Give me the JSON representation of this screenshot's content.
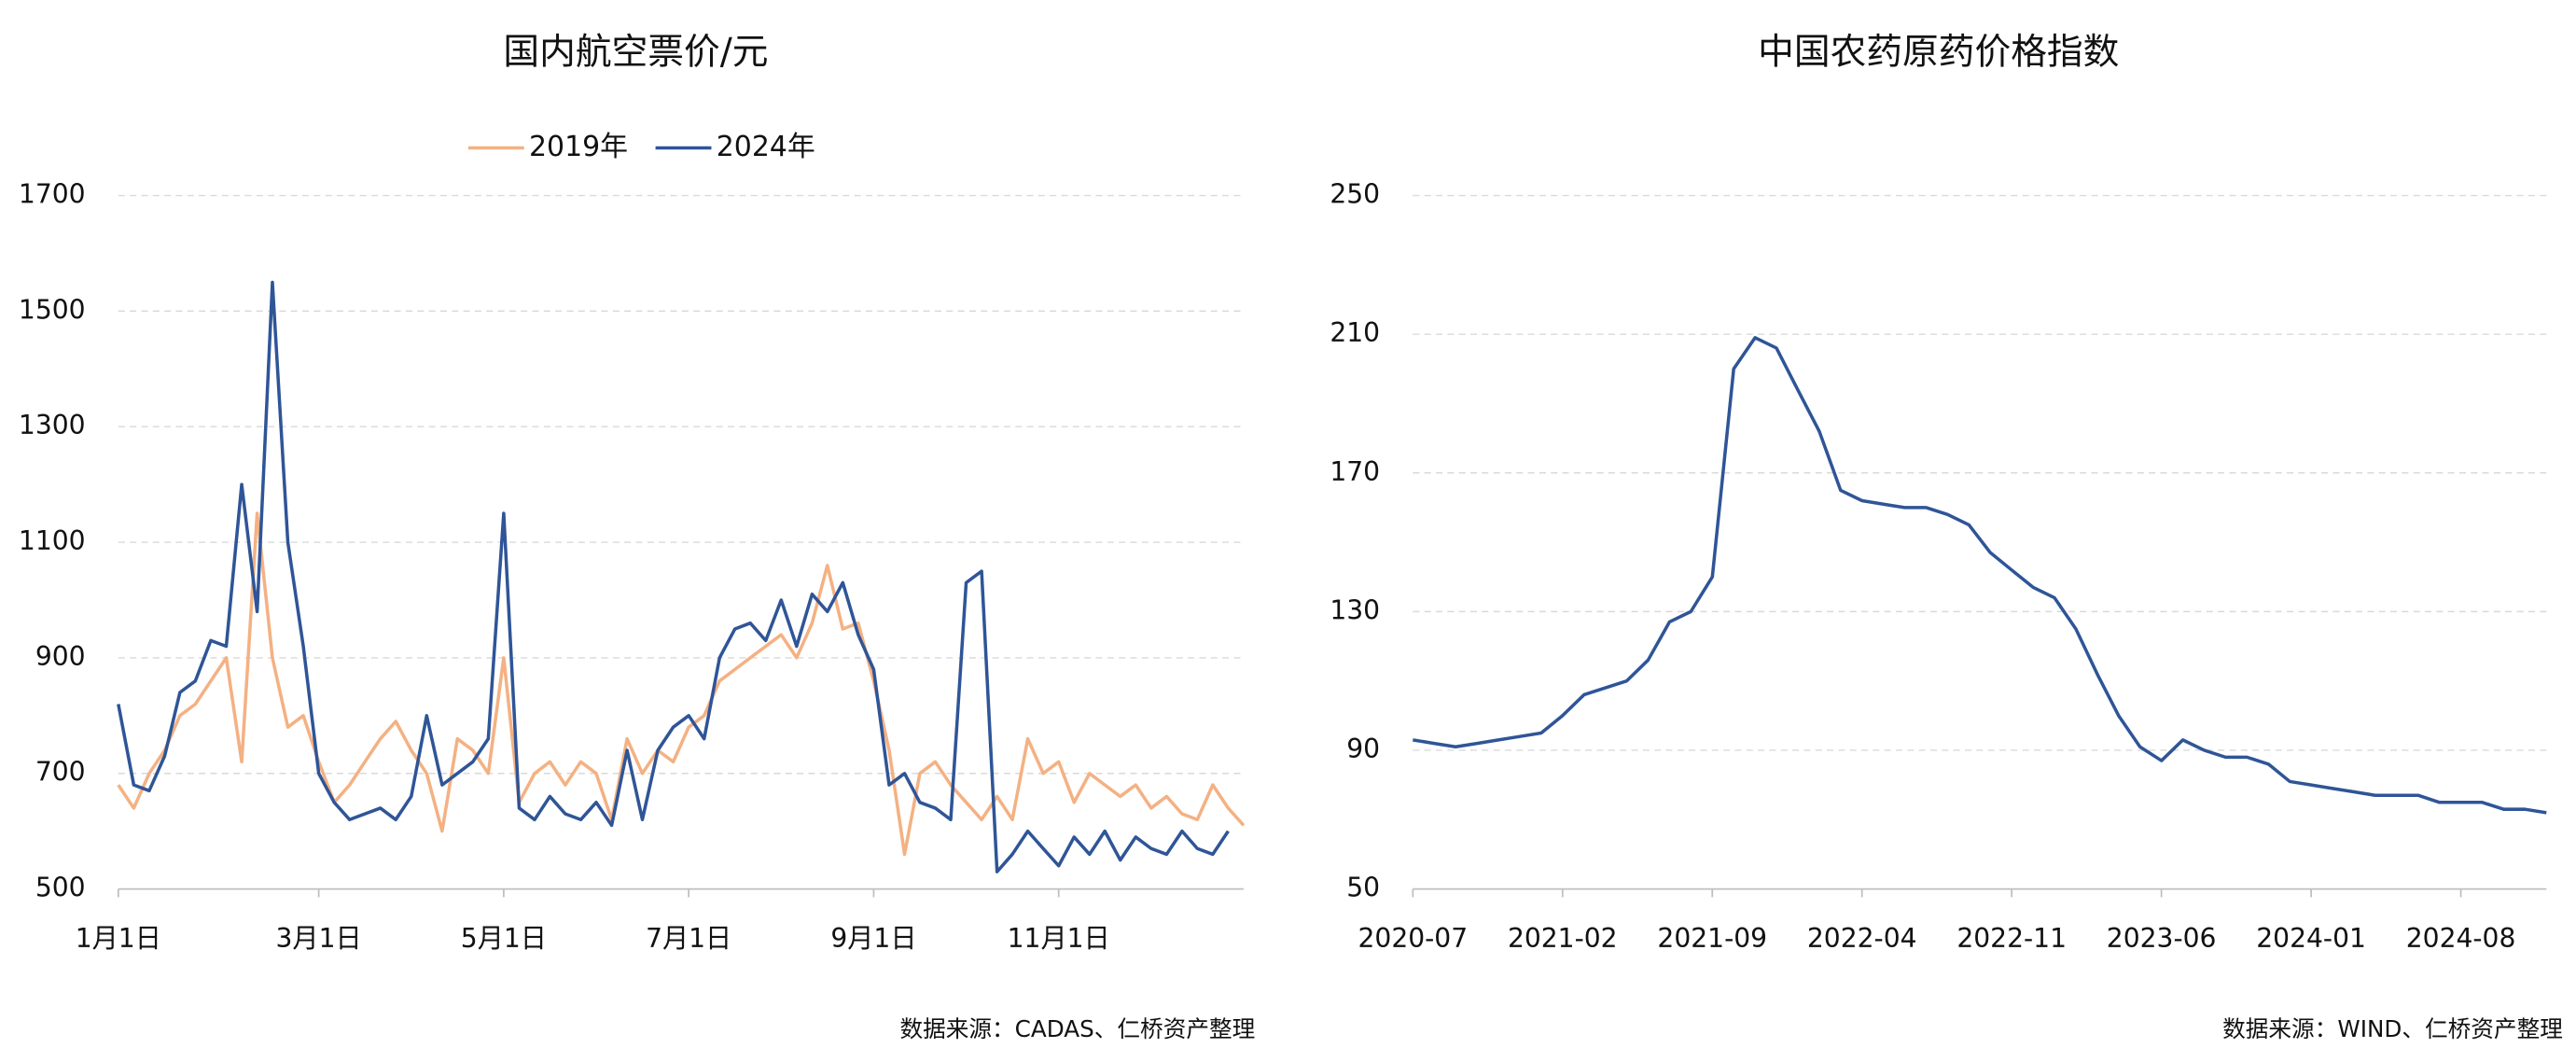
{
  "chart_data": [
    {
      "type": "line",
      "title": "国内航空票价/元",
      "source": "数据来源：CADAS、仁桥资产整理",
      "legend": "top",
      "x": [
        "1月1日",
        "1月6日",
        "1月11日",
        "1月16日",
        "1月21日",
        "1月26日",
        "1月31日",
        "2月1日",
        "2月6日",
        "2月11日",
        "2月16日",
        "2月21日",
        "2月26日",
        "3月1日",
        "3月6日",
        "3月11日",
        "3月16日",
        "3月21日",
        "3月26日",
        "4月1日",
        "4月6日",
        "4月11日",
        "4月16日",
        "4月21日",
        "4月26日",
        "5月1日",
        "5月6日",
        "5月11日",
        "5月16日",
        "5月21日",
        "5月26日",
        "6月1日",
        "6月6日",
        "6月11日",
        "6月16日",
        "6月21日",
        "6月26日",
        "7月1日",
        "7月6日",
        "7月11日",
        "7月16日",
        "7月21日",
        "7月26日",
        "8月1日",
        "8月6日",
        "8月11日",
        "8月16日",
        "8月21日",
        "8月26日",
        "9月1日",
        "9月6日",
        "9月11日",
        "9月16日",
        "9月21日",
        "9月26日",
        "10月1日",
        "10月6日",
        "10月11日",
        "10月16日",
        "10月21日",
        "10月26日",
        "11月1日",
        "11月6日",
        "11月11日",
        "11月16日",
        "11月21日",
        "11月26日",
        "12月1日",
        "12月6日",
        "12月11日",
        "12月16日",
        "12月21日",
        "12月26日",
        "12月31日"
      ],
      "xticks": [
        "1月1日",
        "3月1日",
        "5月1日",
        "7月1日",
        "9月1日",
        "11月1日"
      ],
      "ylim": [
        500,
        1700
      ],
      "yticks": [
        500,
        700,
        900,
        1100,
        1300,
        1500,
        1700
      ],
      "grid": true,
      "series": [
        {
          "name": "2019年",
          "color": "#f4b183",
          "values": [
            680,
            640,
            700,
            740,
            800,
            820,
            860,
            900,
            720,
            1150,
            900,
            780,
            800,
            720,
            650,
            680,
            720,
            760,
            790,
            740,
            700,
            600,
            760,
            740,
            700,
            900,
            650,
            700,
            720,
            680,
            720,
            700,
            620,
            760,
            700,
            740,
            720,
            780,
            800,
            860,
            880,
            900,
            920,
            940,
            900,
            960,
            1060,
            950,
            960,
            860,
            740,
            560,
            700,
            720,
            680,
            650,
            620,
            660,
            620,
            760,
            700,
            720,
            650,
            700,
            680,
            660,
            680,
            640,
            660,
            630,
            620,
            680,
            640,
            610
          ]
        },
        {
          "name": "2024年",
          "color": "#2f5597",
          "values": [
            820,
            680,
            670,
            730,
            840,
            860,
            930,
            920,
            1200,
            980,
            1550,
            1100,
            920,
            700,
            650,
            620,
            630,
            640,
            620,
            660,
            800,
            680,
            700,
            720,
            760,
            1150,
            640,
            620,
            660,
            630,
            620,
            650,
            610,
            740,
            620,
            740,
            780,
            800,
            760,
            900,
            950,
            960,
            930,
            1000,
            920,
            1010,
            980,
            1030,
            940,
            880,
            680,
            700,
            650,
            640,
            620,
            1030,
            1050,
            530,
            560,
            600,
            570,
            540,
            590,
            560,
            600,
            550,
            590,
            570,
            560,
            600,
            570,
            560,
            600,
            null
          ]
        }
      ]
    },
    {
      "type": "line",
      "title": "中国农药原药价格指数",
      "source": "数据来源：WIND、仁桥资产整理",
      "x": [
        "2020-07",
        "2020-08",
        "2020-09",
        "2020-10",
        "2020-11",
        "2020-12",
        "2021-01",
        "2021-02",
        "2021-03",
        "2021-04",
        "2021-05",
        "2021-06",
        "2021-07",
        "2021-08",
        "2021-09",
        "2021-10",
        "2021-11",
        "2021-12",
        "2022-01",
        "2022-02",
        "2022-03",
        "2022-04",
        "2022-05",
        "2022-06",
        "2022-07",
        "2022-08",
        "2022-09",
        "2022-10",
        "2022-11",
        "2022-12",
        "2023-01",
        "2023-02",
        "2023-03",
        "2023-04",
        "2023-05",
        "2023-06",
        "2023-07",
        "2023-08",
        "2023-09",
        "2023-10",
        "2023-11",
        "2023-12",
        "2024-01",
        "2024-02",
        "2024-03",
        "2024-04",
        "2024-05",
        "2024-06",
        "2024-07",
        "2024-08",
        "2024-09",
        "2024-10",
        "2024-11",
        "2024-12"
      ],
      "xticks": [
        "2020-07",
        "2021-02",
        "2021-09",
        "2022-04",
        "2022-11",
        "2023-06",
        "2024-01",
        "2024-08"
      ],
      "ylim": [
        50,
        250
      ],
      "yticks": [
        50,
        90,
        130,
        170,
        210,
        250
      ],
      "grid": true,
      "color": "#2f5597",
      "values": [
        93,
        92,
        91,
        92,
        93,
        94,
        95,
        100,
        106,
        108,
        110,
        116,
        127,
        130,
        140,
        200,
        209,
        206,
        194,
        182,
        165,
        162,
        161,
        160,
        160,
        158,
        155,
        147,
        142,
        137,
        134,
        125,
        112,
        100,
        91,
        87,
        93,
        90,
        88,
        88,
        86,
        81,
        80,
        79,
        78,
        77,
        77,
        77,
        75,
        75,
        75,
        73,
        73,
        72
      ]
    }
  ]
}
